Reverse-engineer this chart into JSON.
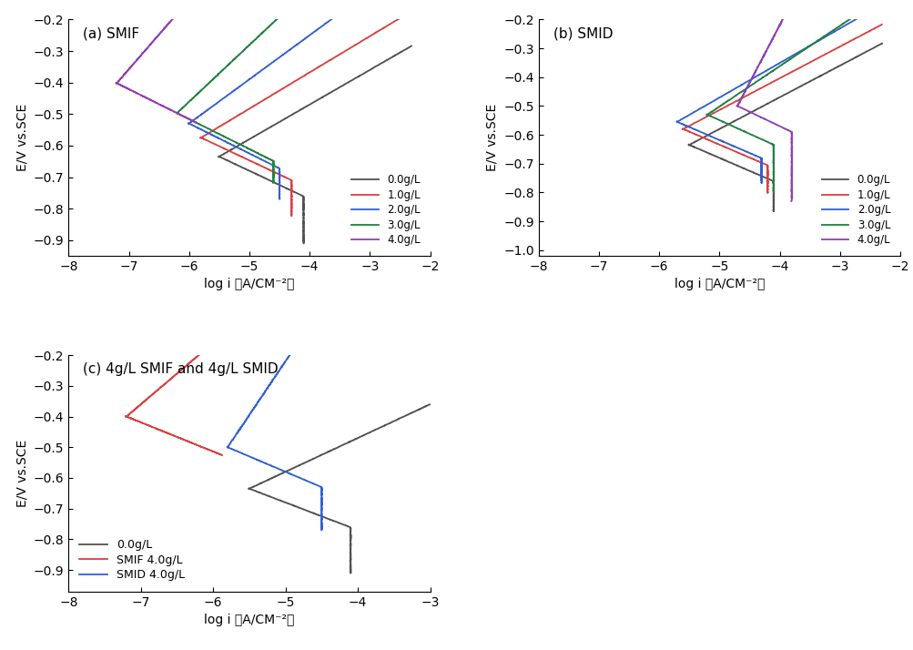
{
  "panel_a": {
    "title": "(a) SMIF",
    "xlabel": "log i （A/CM⁻²）",
    "ylabel": "E/V vs.SCE",
    "xlim": [
      -8,
      -2
    ],
    "ylim": [
      -0.95,
      -0.2
    ],
    "yticks": [
      -0.9,
      -0.8,
      -0.7,
      -0.6,
      -0.5,
      -0.4,
      -0.3,
      -0.2
    ],
    "xticks": [
      -8,
      -7,
      -6,
      -5,
      -4,
      -3,
      -2
    ],
    "legend_labels": [
      "0.0g/L",
      "1.0g/L",
      "2.0g/L",
      "3.0g/L",
      "4.0g/L"
    ],
    "colors": [
      "#505050",
      "#d94040",
      "#3060d0",
      "#208040",
      "#9040b0"
    ]
  },
  "panel_b": {
    "title": "(b) SMID",
    "xlabel": "log i （A/CM⁻²）",
    "ylabel": "E/V vs.SCE",
    "xlim": [
      -8,
      -2
    ],
    "ylim": [
      -1.02,
      -0.2
    ],
    "yticks": [
      -1.0,
      -0.9,
      -0.8,
      -0.7,
      -0.6,
      -0.5,
      -0.4,
      -0.3,
      -0.2
    ],
    "xticks": [
      -8,
      -7,
      -6,
      -5,
      -4,
      -3,
      -2
    ],
    "legend_labels": [
      "0.0g/L",
      "1.0g/L",
      "2.0g/L",
      "3.0g/L",
      "4.0g/L"
    ],
    "colors": [
      "#505050",
      "#d94040",
      "#3060d0",
      "#208040",
      "#9040b0"
    ]
  },
  "panel_c": {
    "title": "(c) 4g/L SMIF and 4g/L SMID",
    "xlabel": "log i （A/CM⁻²）",
    "ylabel": "E/V vs.SCE",
    "xlim": [
      -8,
      -3
    ],
    "ylim": [
      -0.97,
      -0.2
    ],
    "yticks": [
      -0.9,
      -0.8,
      -0.7,
      -0.6,
      -0.5,
      -0.4,
      -0.3,
      -0.2
    ],
    "xticks": [
      -8,
      -7,
      -6,
      -5,
      -4,
      -3
    ],
    "legend_labels": [
      "0.0g/L",
      "SMIF 4.0g/L",
      "SMID 4.0g/L"
    ],
    "colors": [
      "#505050",
      "#d94040",
      "#3060d0"
    ]
  },
  "background_color": "#ffffff",
  "line_width": 1.3
}
